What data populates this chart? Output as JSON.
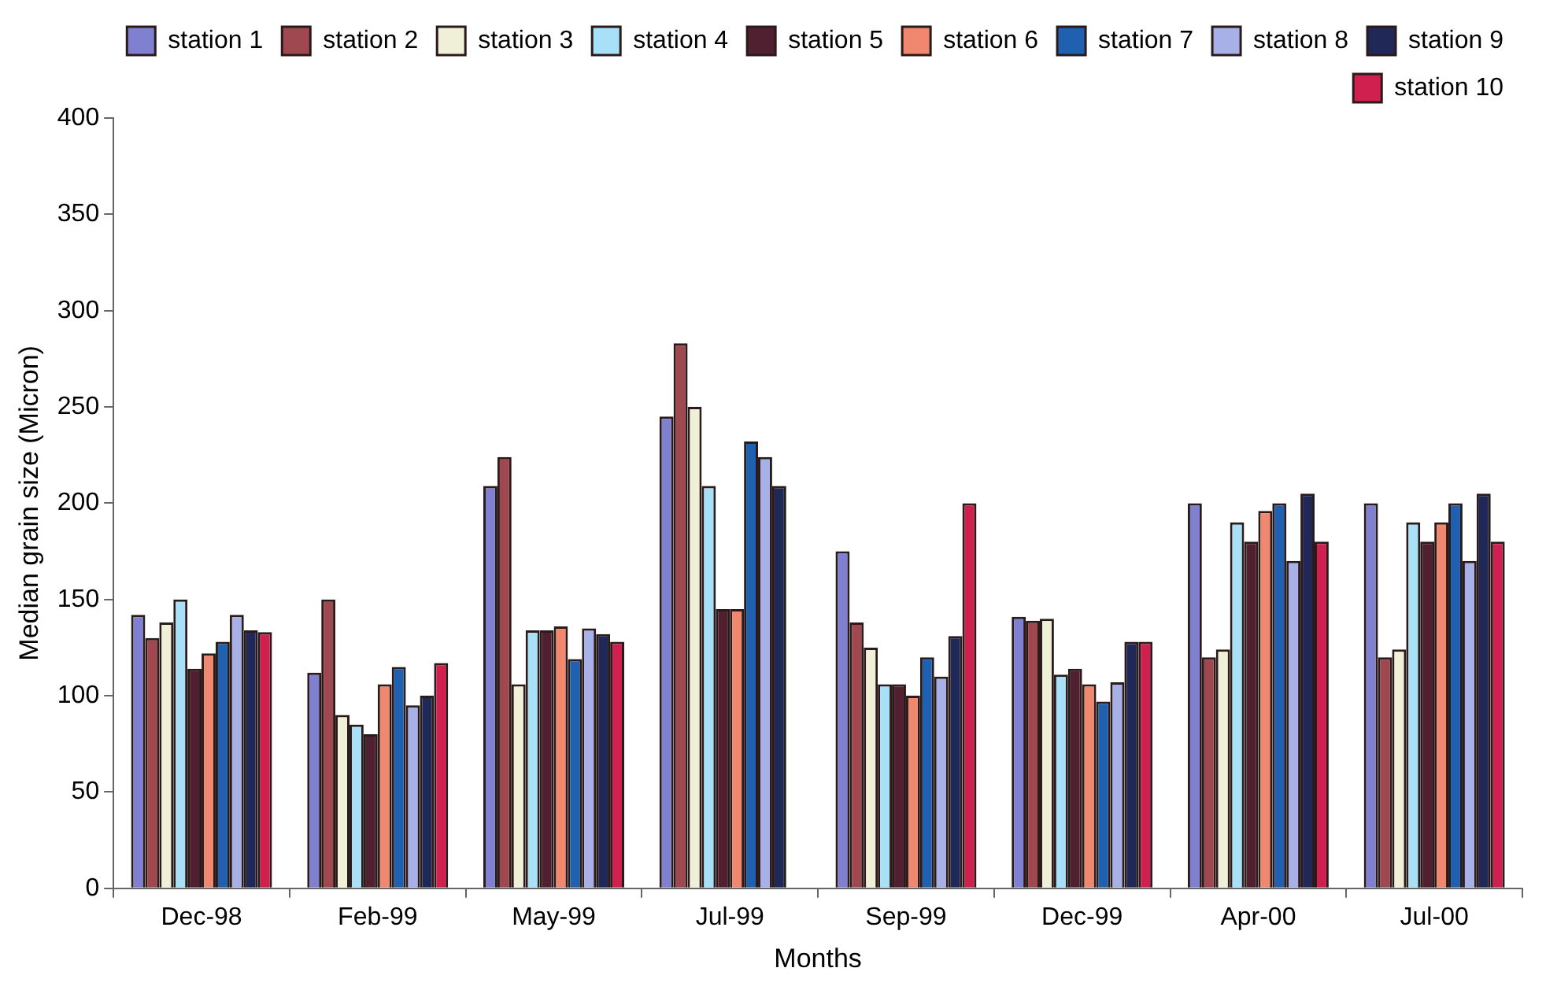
{
  "chart_data": {
    "type": "bar",
    "xlabel": "Months",
    "ylabel": "Median grain size (Micron)",
    "categories": [
      "Dec-98",
      "Feb-99",
      "May-99",
      "Jul-99",
      "Sep-99",
      "Dec-99",
      "Apr-00",
      "Jul-00"
    ],
    "series": [
      {
        "name": "station 1",
        "color": "#8080d0",
        "values": [
          142,
          112,
          209,
          245,
          175,
          141,
          200,
          200
        ]
      },
      {
        "name": "station 2",
        "color": "#a04850",
        "values": [
          130,
          150,
          224,
          283,
          138,
          139,
          120,
          120
        ]
      },
      {
        "name": "station 3",
        "color": "#f0f0d8",
        "values": [
          138,
          90,
          106,
          250,
          125,
          140,
          124,
          124
        ]
      },
      {
        "name": "station 4",
        "color": "#a8e0f8",
        "values": [
          150,
          85,
          134,
          209,
          106,
          111,
          190,
          190
        ]
      },
      {
        "name": "station 5",
        "color": "#502030",
        "values": [
          114,
          80,
          134,
          145,
          106,
          114,
          180,
          180
        ]
      },
      {
        "name": "station 6",
        "color": "#f08870",
        "values": [
          122,
          106,
          136,
          145,
          100,
          106,
          196,
          190
        ]
      },
      {
        "name": "station 7",
        "color": "#2060b0",
        "values": [
          128,
          115,
          119,
          232,
          120,
          97,
          200,
          200
        ]
      },
      {
        "name": "station 8",
        "color": "#a8b0e8",
        "values": [
          142,
          95,
          135,
          224,
          110,
          107,
          170,
          170
        ]
      },
      {
        "name": "station 9",
        "color": "#202858",
        "values": [
          134,
          100,
          132,
          209,
          131,
          128,
          205,
          205
        ]
      },
      {
        "name": "station 10",
        "color": "#d02050",
        "values": [
          133,
          117,
          128,
          null,
          200,
          128,
          180,
          180
        ]
      }
    ],
    "ylim": [
      0,
      400
    ],
    "yticks": [
      0,
      50,
      100,
      150,
      200,
      250,
      300,
      350,
      400
    ],
    "grid": false,
    "legend": "top right"
  }
}
